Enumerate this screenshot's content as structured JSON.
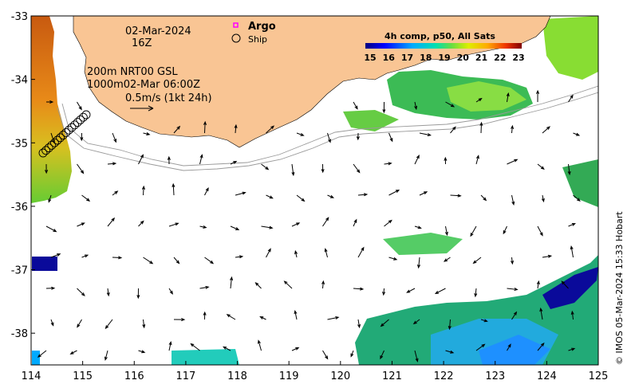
{
  "map": {
    "date": "02-Mar-2024",
    "time": "16Z",
    "current_info": [
      "200m NRT00 GSL",
      "1000m02-Mar 06:00Z",
      "0.5m/s (1kt 24h)"
    ],
    "credit": "© IMOS 05-Mar-2024 15:33 Hobart",
    "lon_range": [
      114,
      125
    ],
    "lat_range": [
      -38.5,
      -33
    ],
    "x_ticks": [
      "114",
      "115",
      "116",
      "117",
      "118",
      "119",
      "120",
      "121",
      "122",
      "123",
      "124",
      "125"
    ],
    "y_ticks": [
      "-33",
      "-34",
      "-35",
      "-36",
      "-37",
      "-38"
    ]
  },
  "legend": {
    "argo": "Argo",
    "ship": "Ship",
    "argo_color": "#ff00ff"
  },
  "colorbar": {
    "title": "4h comp, p50, All Sats",
    "labels": [
      "15",
      "16",
      "17",
      "18",
      "19",
      "20",
      "21",
      "22",
      "23"
    ],
    "colors": [
      "#00007f",
      "#0000ff",
      "#007fff",
      "#00ffff",
      "#7fff7f",
      "#ffff00",
      "#ff7f00",
      "#ff0000",
      "#7f0000"
    ]
  },
  "colors": {
    "land": "#f9c594",
    "warm": "#e07a10",
    "green": "#22aa44",
    "blue": "#1e90ff",
    "deep": "#00008b"
  }
}
